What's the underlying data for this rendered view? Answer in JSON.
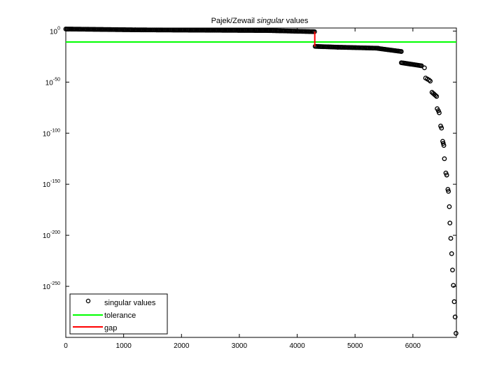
{
  "chart_data": {
    "type": "scatter",
    "title": "Pajek/Zewail singular values",
    "title_italic_part": "singular",
    "xlabel": "",
    "ylabel": "",
    "xlim": [
      0,
      6752
    ],
    "ylim_log10": [
      -300,
      3
    ],
    "y_scale": "log",
    "x_ticks": [
      0,
      1000,
      2000,
      3000,
      4000,
      5000,
      6000
    ],
    "y_ticks": [
      {
        "base": "10",
        "exp": "0",
        "log10": 0
      },
      {
        "base": "10",
        "exp": "-50",
        "log10": -50
      },
      {
        "base": "10",
        "exp": "-100",
        "log10": -100
      },
      {
        "base": "10",
        "exp": "-150",
        "log10": -150
      },
      {
        "base": "10",
        "exp": "-200",
        "log10": -200
      },
      {
        "base": "10",
        "exp": "-250",
        "log10": -250
      }
    ],
    "grid": false,
    "legend_position": "bottom-left",
    "series": [
      {
        "name": "singular values",
        "style": "open circles",
        "color": "#000000",
        "segments_log10": [
          {
            "x_start": 0,
            "x_end": 1200,
            "y_start": 2,
            "y_end": 1.2
          },
          {
            "x_start": 1200,
            "x_end": 3500,
            "y_start": 1.2,
            "y_end": 0.5
          },
          {
            "x_start": 3500,
            "x_end": 4300,
            "y_start": 0.5,
            "y_end": -0.6
          },
          {
            "x_start": 4310,
            "x_end": 4700,
            "y_start": -15,
            "y_end": -15.8
          },
          {
            "x_start": 4700,
            "x_end": 5400,
            "y_start": -15.8,
            "y_end": -16.8
          },
          {
            "x_start": 5400,
            "x_end": 5800,
            "y_start": -17,
            "y_end": -20
          },
          {
            "x_start": 5800,
            "x_end": 6150,
            "y_start": -31,
            "y_end": -34
          }
        ],
        "tail_points_log10": [
          {
            "x": 6200,
            "y": -36
          },
          {
            "x": 6220,
            "y": -46
          },
          {
            "x": 6250,
            "y": -47
          },
          {
            "x": 6280,
            "y": -48
          },
          {
            "x": 6300,
            "y": -49
          },
          {
            "x": 6330,
            "y": -60
          },
          {
            "x": 6350,
            "y": -61
          },
          {
            "x": 6370,
            "y": -62
          },
          {
            "x": 6390,
            "y": -63
          },
          {
            "x": 6410,
            "y": -64
          },
          {
            "x": 6420,
            "y": -76
          },
          {
            "x": 6440,
            "y": -78
          },
          {
            "x": 6455,
            "y": -80
          },
          {
            "x": 6480,
            "y": -93
          },
          {
            "x": 6495,
            "y": -95
          },
          {
            "x": 6515,
            "y": -108
          },
          {
            "x": 6525,
            "y": -110
          },
          {
            "x": 6535,
            "y": -112
          },
          {
            "x": 6545,
            "y": -125
          },
          {
            "x": 6570,
            "y": -139
          },
          {
            "x": 6585,
            "y": -141
          },
          {
            "x": 6605,
            "y": -155
          },
          {
            "x": 6615,
            "y": -157
          },
          {
            "x": 6630,
            "y": -172
          },
          {
            "x": 6640,
            "y": -188
          },
          {
            "x": 6655,
            "y": -203
          },
          {
            "x": 6670,
            "y": -218
          },
          {
            "x": 6685,
            "y": -234
          },
          {
            "x": 6700,
            "y": -249
          },
          {
            "x": 6715,
            "y": -265
          },
          {
            "x": 6730,
            "y": -280
          },
          {
            "x": 6745,
            "y": -296
          }
        ]
      },
      {
        "name": "tolerance",
        "style": "line",
        "color": "#00ff00",
        "y_log10": -10.7
      },
      {
        "name": "gap",
        "style": "line",
        "color": "#ff0000",
        "x": 4304,
        "y_log10_from": -0.6,
        "y_log10_to": -15
      }
    ]
  }
}
